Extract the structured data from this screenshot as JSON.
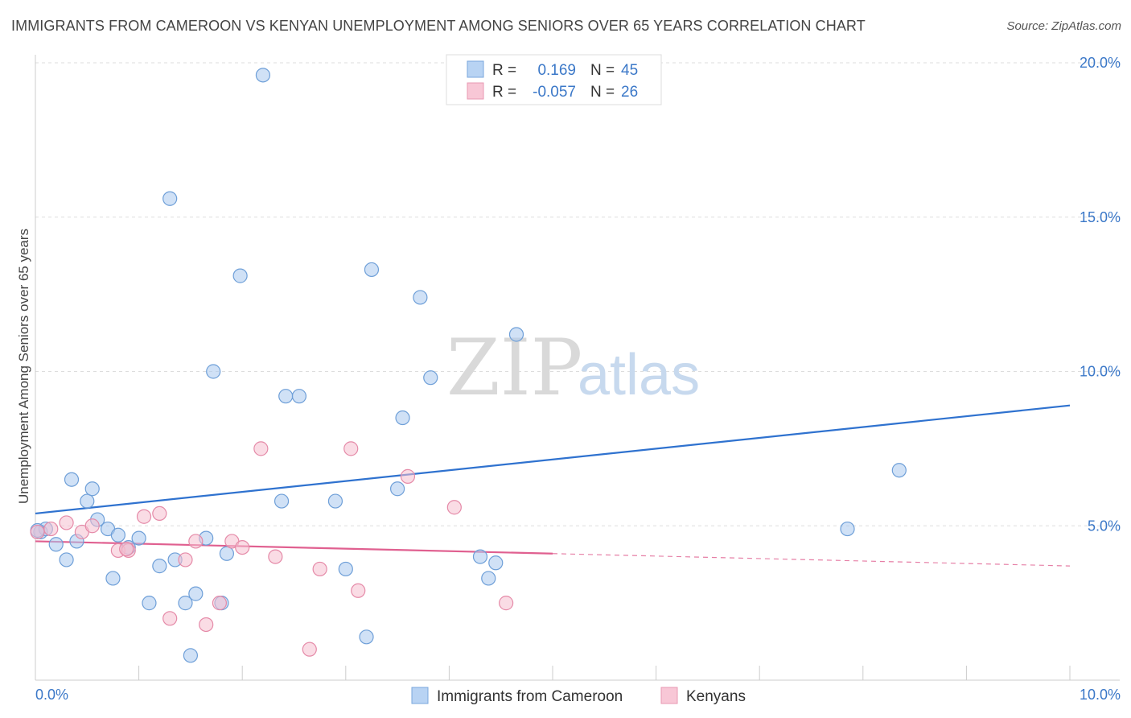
{
  "title": "IMMIGRANTS FROM CAMEROON VS KENYAN UNEMPLOYMENT AMONG SENIORS OVER 65 YEARS CORRELATION CHART",
  "source": "Source: ZipAtlas.com",
  "watermark": {
    "zip": "ZIP",
    "atlas": "atlas"
  },
  "legend": {
    "rows": [
      {
        "r_label": "R =",
        "r_value": "0.169",
        "n_label": "N =",
        "n_value": "45"
      },
      {
        "r_label": "R =",
        "r_value": "-0.057",
        "n_label": "N =",
        "n_value": "26"
      }
    ]
  },
  "bottom_legend": [
    "Immigrants from Cameroon",
    "Kenyans"
  ],
  "chart_data": {
    "type": "scatter",
    "title": "IMMIGRANTS FROM CAMEROON VS KENYAN UNEMPLOYMENT AMONG SENIORS OVER 65 YEARS CORRELATION CHART",
    "xlabel": "",
    "ylabel": "Unemployment Among Seniors over 65 years",
    "xlim": [
      0,
      10
    ],
    "ylim": [
      0,
      20
    ],
    "x_tick_labels": [
      "0.0%",
      "10.0%"
    ],
    "y_ticks": [
      5,
      10,
      15,
      20
    ],
    "y_tick_labels": [
      "5.0%",
      "10.0%",
      "15.0%",
      "20.0%"
    ],
    "grid": true,
    "legend_position": "top-center",
    "series": [
      {
        "name": "Immigrants from Cameroon",
        "color": "#a9c8ef",
        "stroke": "#6e9fd8",
        "line_color": "#2f72cf",
        "r": 0.169,
        "n": 45,
        "trend": {
          "x": [
            0,
            10
          ],
          "y": [
            5.4,
            8.9
          ]
        },
        "points": [
          [
            0.05,
            4.8
          ],
          [
            0.1,
            4.9
          ],
          [
            0.2,
            4.4
          ],
          [
            0.3,
            3.9
          ],
          [
            0.35,
            6.5
          ],
          [
            0.4,
            4.5
          ],
          [
            0.5,
            5.8
          ],
          [
            0.55,
            6.2
          ],
          [
            0.6,
            5.2
          ],
          [
            0.7,
            4.9
          ],
          [
            0.75,
            3.3
          ],
          [
            0.8,
            4.7
          ],
          [
            0.9,
            4.3
          ],
          [
            1.0,
            4.6
          ],
          [
            1.1,
            2.5
          ],
          [
            1.2,
            3.7
          ],
          [
            1.3,
            15.6
          ],
          [
            1.35,
            3.9
          ],
          [
            1.45,
            2.5
          ],
          [
            1.5,
            0.8
          ],
          [
            1.55,
            2.8
          ],
          [
            1.65,
            4.6
          ],
          [
            1.72,
            10.0
          ],
          [
            1.8,
            2.5
          ],
          [
            1.85,
            4.1
          ],
          [
            1.98,
            13.1
          ],
          [
            2.2,
            19.6
          ],
          [
            2.38,
            5.8
          ],
          [
            2.42,
            9.2
          ],
          [
            2.55,
            9.2
          ],
          [
            2.9,
            5.8
          ],
          [
            3.0,
            3.6
          ],
          [
            3.2,
            1.4
          ],
          [
            3.25,
            13.3
          ],
          [
            3.5,
            6.2
          ],
          [
            3.55,
            8.5
          ],
          [
            3.72,
            12.4
          ],
          [
            3.82,
            9.8
          ],
          [
            4.3,
            4.0
          ],
          [
            4.38,
            3.3
          ],
          [
            4.45,
            3.8
          ],
          [
            4.65,
            11.2
          ],
          [
            7.85,
            4.9
          ],
          [
            8.35,
            6.8
          ],
          [
            0.02,
            4.85
          ]
        ]
      },
      {
        "name": "Kenyans",
        "color": "#f5bfd0",
        "stroke": "#e58aa8",
        "line_color": "#e06090",
        "r": -0.057,
        "n": 26,
        "trend": {
          "x": [
            0,
            5
          ],
          "y": [
            4.5,
            4.1
          ]
        },
        "trend_dashed": {
          "x": [
            5,
            10
          ],
          "y": [
            4.1,
            3.7
          ]
        },
        "points": [
          [
            0.02,
            4.8
          ],
          [
            0.15,
            4.9
          ],
          [
            0.3,
            5.1
          ],
          [
            0.45,
            4.8
          ],
          [
            0.55,
            5.0
          ],
          [
            0.8,
            4.2
          ],
          [
            0.9,
            4.2
          ],
          [
            1.05,
            5.3
          ],
          [
            1.2,
            5.4
          ],
          [
            1.3,
            2.0
          ],
          [
            1.45,
            3.9
          ],
          [
            1.55,
            4.5
          ],
          [
            1.65,
            1.8
          ],
          [
            1.78,
            2.5
          ],
          [
            1.9,
            4.5
          ],
          [
            2.0,
            4.3
          ],
          [
            2.18,
            7.5
          ],
          [
            2.32,
            4.0
          ],
          [
            2.65,
            1.0
          ],
          [
            2.75,
            3.6
          ],
          [
            3.05,
            7.5
          ],
          [
            3.12,
            2.9
          ],
          [
            3.6,
            6.6
          ],
          [
            4.05,
            5.6
          ],
          [
            4.55,
            2.5
          ],
          [
            0.88,
            4.25
          ]
        ]
      }
    ]
  }
}
